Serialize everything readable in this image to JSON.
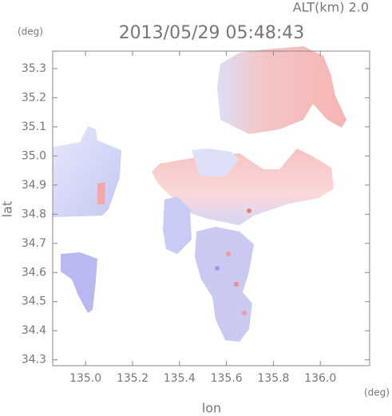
{
  "chart_data": {
    "type": "map",
    "title": "2013/05/29 05:48:43",
    "annotation": "ALT(km) 2.0",
    "y_unit": "(deg)",
    "x_unit": "(deg)",
    "xlabel": "lon",
    "ylabel": "lat",
    "xlim": [
      134.86,
      136.21
    ],
    "ylim": [
      34.28,
      35.36
    ],
    "xticks": [
      {
        "value": 135,
        "label": "135.0"
      },
      135.2,
      135.4,
      135.6,
      135.8,
      {
        "value": 136,
        "label": "136.0"
      }
    ],
    "yticks": [
      34.3,
      34.4,
      34.5,
      34.6,
      34.7,
      34.8,
      34.9,
      {
        "value": 35,
        "label": "35.0"
      },
      35.1,
      35.2,
      35.3
    ]
  }
}
